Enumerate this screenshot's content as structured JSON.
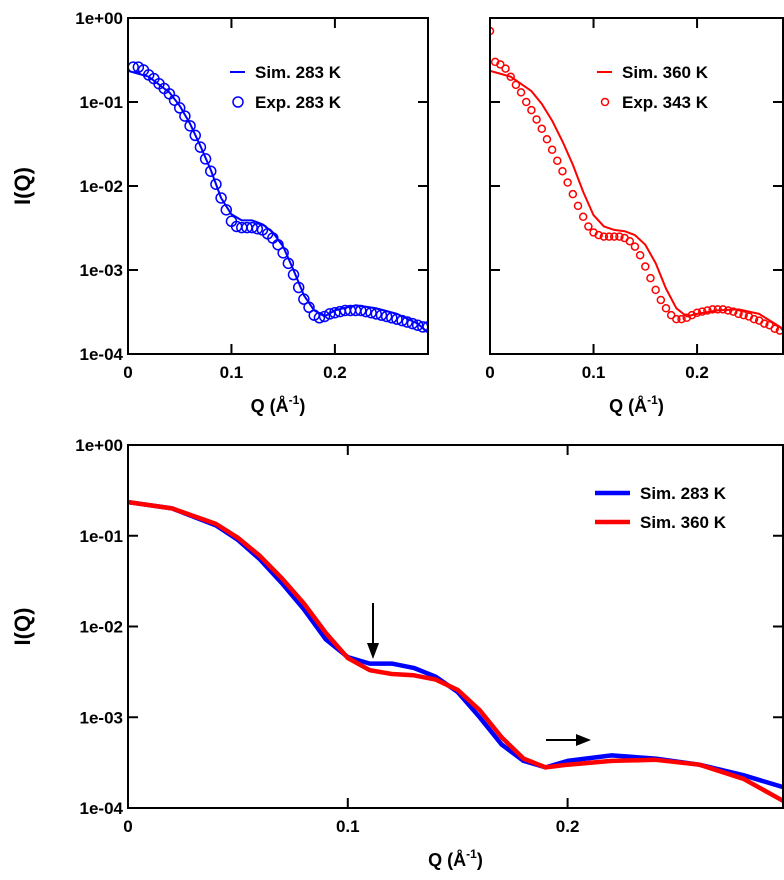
{
  "chart_data": [
    {
      "type": "line",
      "yscale": "log",
      "legend": "upper right",
      "ylabel": "I(Q)",
      "xlabel": [
        "Q (Å",
        "-1",
        ")"
      ],
      "xlim": [
        0,
        0.29
      ],
      "ylim": [
        0.0001,
        1
      ],
      "xticks": [
        0,
        0.1,
        0.2
      ],
      "yticks": [
        {
          "value": 0.0001,
          "label": "1e-04"
        },
        {
          "value": 0.001,
          "label": "1e-03"
        },
        {
          "value": 0.01,
          "label": "1e-02"
        },
        {
          "value": 0.1,
          "label": "1e-01"
        },
        {
          "value": 1,
          "label": "1e+00"
        }
      ],
      "series": [
        {
          "name": "Sim. 283 K",
          "color": "#0000ff",
          "mode": "lines",
          "x": [
            0,
            0.02,
            0.04,
            0.05,
            0.06,
            0.07,
            0.08,
            0.09,
            0.1,
            0.11,
            0.12,
            0.13,
            0.14,
            0.15,
            0.16,
            0.17,
            0.18,
            0.19,
            0.2,
            0.22,
            0.24,
            0.26,
            0.28,
            0.29
          ],
          "values": [
            0.235,
            0.2,
            0.13,
            0.09,
            0.055,
            0.03,
            0.0155,
            0.0072,
            0.0046,
            0.0039,
            0.0039,
            0.0035,
            0.0028,
            0.0019,
            0.001,
            0.0005,
            0.00033,
            0.00028,
            0.00033,
            0.00038,
            0.00035,
            0.0003,
            0.00023,
            0.00018
          ]
        },
        {
          "name": "Exp. 283 K",
          "color": "#0000ff",
          "mode": "markers",
          "x": [
            0.005,
            0.01,
            0.015,
            0.02,
            0.025,
            0.03,
            0.035,
            0.04,
            0.045,
            0.05,
            0.055,
            0.06,
            0.065,
            0.07,
            0.075,
            0.08,
            0.085,
            0.09,
            0.095,
            0.1,
            0.105,
            0.11,
            0.115,
            0.12,
            0.125,
            0.13,
            0.135,
            0.14,
            0.145,
            0.15,
            0.155,
            0.16,
            0.165,
            0.17,
            0.175,
            0.18,
            0.185,
            0.19,
            0.195,
            0.2,
            0.205,
            0.21,
            0.215,
            0.22,
            0.225,
            0.23,
            0.235,
            0.24,
            0.245,
            0.25,
            0.255,
            0.26,
            0.265,
            0.27,
            0.275,
            0.28,
            0.285,
            0.29
          ],
          "values": [
            0.26,
            0.26,
            0.24,
            0.21,
            0.19,
            0.165,
            0.145,
            0.125,
            0.105,
            0.085,
            0.068,
            0.052,
            0.04,
            0.029,
            0.021,
            0.015,
            0.0105,
            0.0072,
            0.0052,
            0.0038,
            0.0033,
            0.0032,
            0.0032,
            0.0032,
            0.0031,
            0.003,
            0.0027,
            0.0024,
            0.002,
            0.0016,
            0.0012,
            0.00088,
            0.00062,
            0.00045,
            0.00036,
            0.00029,
            0.00027,
            0.00028,
            0.0003,
            0.00031,
            0.00032,
            0.00033,
            0.00033,
            0.00033,
            0.00033,
            0.00032,
            0.00031,
            0.0003,
            0.00029,
            0.00028,
            0.00027,
            0.00026,
            0.00025,
            0.00024,
            0.00023,
            0.00022,
            0.00021,
            0.00021
          ]
        }
      ]
    },
    {
      "type": "line",
      "yscale": "log",
      "legend": "upper right",
      "xlabel": [
        "Q (Å",
        "-1",
        ")"
      ],
      "xlim": [
        0,
        0.283
      ],
      "ylim": [
        0.0001,
        1
      ],
      "xticks": [
        0,
        0.1,
        0.2
      ],
      "yticks": [
        0.0001,
        0.001,
        0.01,
        0.1,
        1
      ],
      "series": [
        {
          "name": "Sim. 360 K",
          "color": "#ff0000",
          "mode": "lines",
          "x": [
            0,
            0.02,
            0.04,
            0.05,
            0.06,
            0.07,
            0.08,
            0.09,
            0.1,
            0.11,
            0.12,
            0.13,
            0.14,
            0.15,
            0.16,
            0.17,
            0.18,
            0.19,
            0.2,
            0.22,
            0.24,
            0.26,
            0.28,
            0.29
          ],
          "values": [
            0.235,
            0.2,
            0.135,
            0.095,
            0.06,
            0.034,
            0.018,
            0.0085,
            0.0045,
            0.0033,
            0.003,
            0.0029,
            0.0026,
            0.002,
            0.0012,
            0.0006,
            0.00035,
            0.00028,
            0.0003,
            0.00033,
            0.00034,
            0.0003,
            0.00021,
            0.00015
          ]
        },
        {
          "name": "Exp. 343 K",
          "color": "#ff0000",
          "mode": "markers",
          "x": [
            0,
            0.005,
            0.01,
            0.015,
            0.02,
            0.025,
            0.03,
            0.035,
            0.04,
            0.045,
            0.05,
            0.055,
            0.06,
            0.065,
            0.07,
            0.075,
            0.08,
            0.085,
            0.09,
            0.095,
            0.1,
            0.105,
            0.11,
            0.115,
            0.12,
            0.125,
            0.13,
            0.135,
            0.14,
            0.145,
            0.15,
            0.155,
            0.16,
            0.165,
            0.17,
            0.175,
            0.18,
            0.185,
            0.19,
            0.195,
            0.2,
            0.205,
            0.21,
            0.215,
            0.22,
            0.225,
            0.23,
            0.235,
            0.24,
            0.245,
            0.25,
            0.255,
            0.26,
            0.265,
            0.27,
            0.275,
            0.28
          ],
          "values": [
            0.7,
            0.3,
            0.28,
            0.25,
            0.2,
            0.16,
            0.13,
            0.1,
            0.08,
            0.062,
            0.048,
            0.036,
            0.027,
            0.02,
            0.015,
            0.011,
            0.008,
            0.0058,
            0.0043,
            0.0033,
            0.0028,
            0.0026,
            0.0025,
            0.0025,
            0.0025,
            0.0025,
            0.0024,
            0.0022,
            0.0019,
            0.0015,
            0.0011,
            0.0008,
            0.00058,
            0.00044,
            0.00035,
            0.00029,
            0.00026,
            0.00026,
            0.00027,
            0.00029,
            0.00031,
            0.00032,
            0.00033,
            0.00034,
            0.00034,
            0.00034,
            0.00033,
            0.00032,
            0.0003,
            0.00029,
            0.00028,
            0.00026,
            0.00025,
            0.00023,
            0.00022,
            0.0002,
            0.00019
          ]
        }
      ]
    },
    {
      "type": "line",
      "yscale": "log",
      "legend": "upper right",
      "ylabel": "I(Q)",
      "xlabel": [
        "Q (Å",
        "-1",
        ")"
      ],
      "xlim": [
        0,
        0.298
      ],
      "ylim": [
        0.0001,
        1
      ],
      "xticks": [
        0,
        0.1,
        0.2
      ],
      "yticks": [
        {
          "value": 0.0001,
          "label": "1e-04"
        },
        {
          "value": 0.001,
          "label": "1e-03"
        },
        {
          "value": 0.01,
          "label": "1e-02"
        },
        {
          "value": 0.1,
          "label": "1e-01"
        },
        {
          "value": 1,
          "label": "1e+00"
        }
      ],
      "series": [
        {
          "name": "Sim. 283 K",
          "color": "#0000ff",
          "mode": "lines",
          "x": [
            0,
            0.02,
            0.04,
            0.05,
            0.06,
            0.07,
            0.08,
            0.09,
            0.1,
            0.11,
            0.12,
            0.13,
            0.14,
            0.15,
            0.16,
            0.17,
            0.18,
            0.19,
            0.2,
            0.22,
            0.24,
            0.26,
            0.28,
            0.298
          ],
          "values": [
            0.235,
            0.2,
            0.13,
            0.09,
            0.055,
            0.03,
            0.0155,
            0.0072,
            0.0046,
            0.0039,
            0.0039,
            0.0035,
            0.0028,
            0.0019,
            0.001,
            0.0005,
            0.00033,
            0.00028,
            0.00033,
            0.00038,
            0.00035,
            0.0003,
            0.00023,
            0.00017
          ]
        },
        {
          "name": "Sim. 360 K",
          "color": "#ff0000",
          "mode": "lines",
          "x": [
            0,
            0.02,
            0.04,
            0.05,
            0.06,
            0.07,
            0.08,
            0.09,
            0.1,
            0.11,
            0.12,
            0.13,
            0.14,
            0.15,
            0.16,
            0.17,
            0.18,
            0.19,
            0.2,
            0.22,
            0.24,
            0.26,
            0.28,
            0.298
          ],
          "values": [
            0.235,
            0.2,
            0.135,
            0.095,
            0.06,
            0.034,
            0.018,
            0.0085,
            0.0045,
            0.0033,
            0.003,
            0.0029,
            0.0026,
            0.002,
            0.0012,
            0.0006,
            0.00035,
            0.00028,
            0.0003,
            0.00033,
            0.00034,
            0.0003,
            0.00021,
            0.00012
          ]
        }
      ]
    }
  ]
}
